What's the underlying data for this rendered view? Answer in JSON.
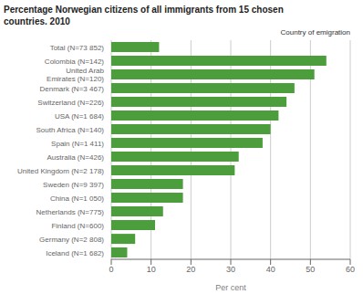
{
  "chart_data": {
    "type": "bar",
    "orientation": "horizontal",
    "title": "Percentage Norwegian citizens of all immigrants from 15 chosen\ncountries. 2010",
    "annotations": [
      "Country of emigration"
    ],
    "categories": [
      "Total (N=73 852)",
      "Colombia (N=142)",
      "United Arab\nEmirates (N=120)",
      "Denmark (N=3 467)",
      "Switzerland (N=226)",
      "USA (N=1 684)",
      "South Africa (N=140)",
      "Spain (N=1 411)",
      "Australia (N=426)",
      "United Kingdom (N=2 178)",
      "Sweden (N=9 397)",
      "China (N=1 050)",
      "Netherlands (N=775)",
      "Finland (N=600)",
      "Germany (N=2 808)",
      "Iceland (N=1 682)"
    ],
    "values": [
      12,
      54,
      51,
      46,
      44,
      42,
      40,
      38,
      32,
      31,
      18,
      18,
      13,
      11,
      6,
      4
    ],
    "color": "#4c9e3c",
    "xlabel": "Per cent",
    "xlim": [
      0,
      60
    ],
    "xticks": [
      0,
      10,
      20,
      30,
      40,
      50,
      60
    ],
    "grid": true
  }
}
